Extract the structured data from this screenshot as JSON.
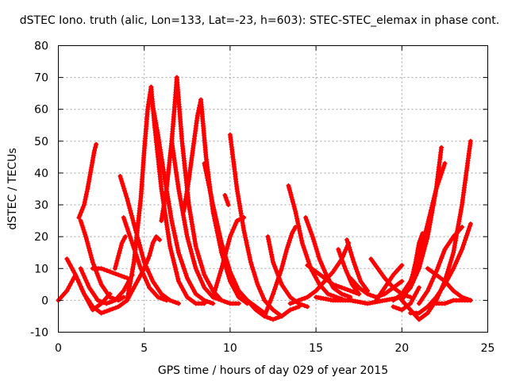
{
  "chart_data": {
    "type": "line",
    "title": "dSTEC Iono. truth (alic, Lon=133, Lat=-23, h=603): STEC-STEC_elemax in phase cont.",
    "xlabel": "GPS time / hours of day 029 of year 2015",
    "ylabel": "dSTEC  / TECUs",
    "xlim": [
      0,
      25
    ],
    "ylim": [
      -10,
      80
    ],
    "xticks": [
      0,
      5,
      10,
      15,
      20,
      25
    ],
    "yticks": [
      -10,
      0,
      10,
      20,
      30,
      40,
      50,
      60,
      70,
      80
    ],
    "grid": true,
    "legend": "none",
    "color": "#ff0000",
    "marker": "plus",
    "series": [
      {
        "x": [
          0.0,
          0.5,
          1.0,
          1.5,
          2.0,
          2.5,
          3.0
        ],
        "y": [
          0,
          3,
          8,
          2,
          -3,
          -1,
          2
        ]
      },
      {
        "x": [
          0.5,
          1.0,
          1.5,
          2.0,
          2.5,
          3.0,
          3.5,
          4.0,
          4.5,
          5.0
        ],
        "y": [
          13,
          8,
          2,
          -2,
          -4,
          -3,
          -2,
          0,
          5,
          10
        ]
      },
      {
        "x": [
          1.2,
          1.5,
          1.7,
          1.9,
          2.1,
          2.2
        ],
        "y": [
          26,
          30,
          35,
          41,
          47,
          49
        ]
      },
      {
        "x": [
          1.3,
          1.6,
          2.0,
          2.5,
          3.0,
          3.5,
          3.8
        ],
        "y": [
          25,
          20,
          12,
          5,
          1,
          0,
          1
        ]
      },
      {
        "x": [
          1.3,
          1.8,
          2.3,
          2.8,
          3.3,
          3.8,
          4.3
        ],
        "y": [
          10,
          4,
          0,
          -1,
          0,
          3,
          8
        ]
      },
      {
        "x": [
          2.0,
          2.5,
          3.0,
          3.5,
          4.0
        ],
        "y": [
          10,
          10,
          9,
          8,
          7
        ]
      },
      {
        "x": [
          3.3,
          3.5,
          3.7,
          3.9
        ],
        "y": [
          10,
          14,
          18,
          20
        ]
      },
      {
        "x": [
          3.6,
          4.0,
          4.5,
          5.0,
          5.5,
          6.0,
          6.5,
          7.0
        ],
        "y": [
          39,
          32,
          22,
          12,
          6,
          2,
          0,
          -1
        ]
      },
      {
        "x": [
          3.8,
          4.3,
          4.8,
          5.3,
          5.8,
          6.3
        ],
        "y": [
          26,
          18,
          10,
          4,
          1,
          0
        ]
      },
      {
        "x": [
          4.0,
          4.4,
          4.8,
          5.0,
          5.2,
          5.4
        ],
        "y": [
          0,
          12,
          32,
          47,
          60,
          67
        ]
      },
      {
        "x": [
          5.4,
          5.6,
          6.0,
          6.5,
          7.0,
          7.5,
          8.0,
          8.5
        ],
        "y": [
          67,
          55,
          35,
          17,
          6,
          1,
          -1,
          -1
        ]
      },
      {
        "x": [
          5.0,
          5.3,
          5.5,
          5.7,
          5.9
        ],
        "y": [
          10,
          14,
          18,
          20,
          19
        ]
      },
      {
        "x": [
          5.5,
          5.8,
          6.2,
          6.6,
          7.0,
          7.5,
          8.0,
          8.5,
          9.0
        ],
        "y": [
          61,
          52,
          38,
          25,
          15,
          7,
          2,
          0,
          -1
        ]
      },
      {
        "x": [
          6.0,
          6.3,
          6.6,
          6.8,
          6.9
        ],
        "y": [
          25,
          35,
          50,
          63,
          70
        ]
      },
      {
        "x": [
          6.9,
          7.2,
          7.6,
          8.0,
          8.5,
          9.0,
          9.5,
          10.0,
          10.5
        ],
        "y": [
          70,
          50,
          30,
          17,
          8,
          3,
          0,
          -1,
          -1
        ]
      },
      {
        "x": [
          6.6,
          7.0,
          7.5,
          8.0,
          8.5,
          9.0,
          9.5
        ],
        "y": [
          50,
          35,
          20,
          10,
          4,
          1,
          0
        ]
      },
      {
        "x": [
          7.3,
          7.6,
          7.9,
          8.1,
          8.3
        ],
        "y": [
          28,
          38,
          50,
          58,
          63
        ]
      },
      {
        "x": [
          8.3,
          8.6,
          9.0,
          9.5,
          10.0,
          10.5,
          11.0
        ],
        "y": [
          63,
          45,
          28,
          15,
          6,
          1,
          -1
        ]
      },
      {
        "x": [
          8.5,
          9.0,
          9.5,
          10.0,
          10.5,
          11.0,
          11.5,
          12.0
        ],
        "y": [
          43,
          30,
          18,
          9,
          3,
          0,
          -2,
          -4
        ]
      },
      {
        "x": [
          9.7,
          9.9
        ],
        "y": [
          33,
          30
        ]
      },
      {
        "x": [
          10.0,
          10.4,
          10.8,
          11.2,
          11.6,
          12.0,
          12.5,
          13.0
        ],
        "y": [
          52,
          35,
          22,
          12,
          5,
          0,
          -3,
          -5
        ]
      },
      {
        "x": [
          9.0,
          9.5,
          10.0,
          10.4,
          10.8
        ],
        "y": [
          1,
          10,
          20,
          25,
          26
        ]
      },
      {
        "x": [
          10.5,
          11.0,
          11.5,
          12.0,
          12.5,
          13.0,
          13.5,
          14.0
        ],
        "y": [
          3,
          0,
          -3,
          -5,
          -6,
          -5,
          -3,
          -2
        ]
      },
      {
        "x": [
          12.2,
          12.5,
          13.0,
          13.5,
          14.0,
          14.5
        ],
        "y": [
          20,
          12,
          5,
          1,
          -1,
          -2
        ]
      },
      {
        "x": [
          13.4,
          13.8,
          14.2,
          14.7,
          15.2,
          15.7,
          16.2,
          16.7
        ],
        "y": [
          36,
          28,
          18,
          10,
          5,
          2,
          1,
          0
        ]
      },
      {
        "x": [
          12.0,
          12.5,
          13.0,
          13.3,
          13.6,
          13.8
        ],
        "y": [
          -5,
          2,
          10,
          16,
          21,
          23
        ]
      },
      {
        "x": [
          14.4,
          14.8,
          15.2,
          15.6,
          16.0,
          16.5,
          17.0
        ],
        "y": [
          26,
          20,
          13,
          8,
          4,
          2,
          1
        ]
      },
      {
        "x": [
          14.5,
          15.0,
          15.5,
          16.0,
          16.5,
          17.0,
          17.5
        ],
        "y": [
          11,
          9,
          7,
          5,
          4,
          3,
          2
        ]
      },
      {
        "x": [
          13.5,
          14.0,
          14.5,
          15.0,
          15.5,
          16.0,
          16.5,
          16.9
        ],
        "y": [
          -1,
          0,
          1,
          3,
          6,
          9,
          13,
          18
        ]
      },
      {
        "x": [
          16.3,
          16.7,
          17.1,
          17.5
        ],
        "y": [
          16,
          10,
          5,
          2
        ]
      },
      {
        "x": [
          16.8,
          17.2,
          17.6,
          18.0
        ],
        "y": [
          19,
          12,
          6,
          3
        ]
      },
      {
        "x": [
          17.0,
          17.5,
          18.0,
          18.5,
          19.0,
          19.5,
          20.0
        ],
        "y": [
          7,
          4,
          2,
          1,
          2,
          4,
          6
        ]
      },
      {
        "x": [
          18.2,
          18.6,
          19.0,
          19.5,
          20.0,
          20.5
        ],
        "y": [
          13,
          10,
          7,
          4,
          2,
          1
        ]
      },
      {
        "x": [
          18.5,
          19.0,
          19.5,
          20.0
        ],
        "y": [
          0,
          4,
          8,
          11
        ]
      },
      {
        "x": [
          15.0,
          16.0,
          17.0,
          18.0,
          19.0,
          20.0,
          20.5,
          21.0,
          21.5,
          22.0,
          22.3
        ],
        "y": [
          1,
          0,
          0,
          -1,
          0,
          1,
          4,
          10,
          20,
          35,
          48
        ]
      },
      {
        "x": [
          19.5,
          20.0,
          20.5,
          21.0,
          21.5,
          22.0,
          22.5
        ],
        "y": [
          0,
          2,
          6,
          13,
          24,
          35,
          43
        ]
      },
      {
        "x": [
          19.5,
          20.0,
          20.5,
          21.0
        ],
        "y": [
          -2,
          -3,
          -1,
          4
        ]
      },
      {
        "x": [
          20.0,
          20.5,
          20.8,
          21.0,
          21.2
        ],
        "y": [
          0,
          5,
          12,
          18,
          21
        ]
      },
      {
        "x": [
          20.0,
          20.5,
          21.0,
          21.5,
          22.0,
          22.5,
          23.0,
          23.5,
          24.0
        ],
        "y": [
          0,
          -3,
          -6,
          -4,
          0,
          6,
          15,
          30,
          50
        ]
      },
      {
        "x": [
          20.5,
          21.0,
          21.5,
          22.0,
          22.5,
          23.0,
          23.5,
          24.0
        ],
        "y": [
          -4,
          -4,
          -2,
          1,
          5,
          10,
          16,
          24
        ]
      },
      {
        "x": [
          21.0,
          21.5,
          22.0,
          22.5,
          23.0,
          23.5
        ],
        "y": [
          -1,
          3,
          9,
          16,
          20,
          23
        ]
      },
      {
        "x": [
          21.5,
          22.0,
          22.5,
          23.0,
          23.5,
          24.0
        ],
        "y": [
          10,
          8,
          6,
          3,
          1,
          0
        ]
      },
      {
        "x": [
          22.0,
          22.5,
          23.0,
          23.5,
          24.0
        ],
        "y": [
          -1,
          -1,
          0,
          0,
          0
        ]
      }
    ]
  }
}
